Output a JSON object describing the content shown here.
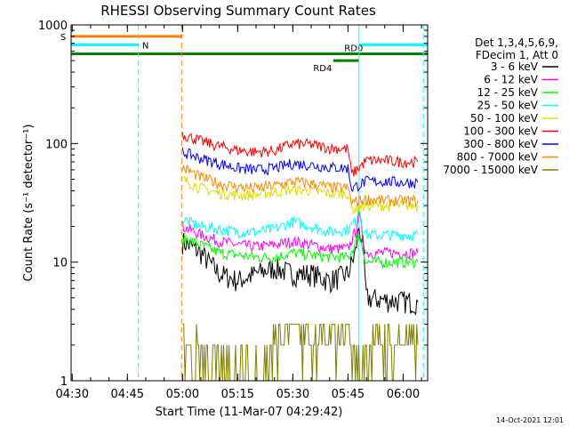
{
  "chart_data": {
    "type": "line",
    "title": "RHESSI Observing Summary Count Rates",
    "xlabel": "Start Time (11-Mar-07 04:29:42)",
    "ylabel": "Count Rate (s⁻¹ detector⁻¹)",
    "x_ticks": [
      "04:30",
      "04:45",
      "05:00",
      "05:15",
      "05:30",
      "05:45",
      "06:00"
    ],
    "x_range": [
      "04:29:42",
      "06:06:40"
    ],
    "y_scale": "log",
    "ylim": [
      1,
      1000
    ],
    "y_ticks": [
      "1",
      "10",
      "100",
      "1000"
    ],
    "legend_header": [
      "Det 1,3,4,5,6,9,",
      "FDecim 1, Att 0"
    ],
    "legend_position": "right",
    "footer_date": "14-Oct-2021 12:01",
    "series": [
      {
        "name": "3 - 6 keV",
        "color": "#000000",
        "x": [
          "05:00",
          "05:05",
          "05:10",
          "05:15",
          "05:20",
          "05:25",
          "05:30",
          "05:35",
          "05:40",
          "05:45",
          "05:47",
          "05:48",
          "05:49",
          "05:50",
          "05:55",
          "06:00",
          "06:04"
        ],
        "values": [
          15,
          12,
          8,
          7,
          8,
          9,
          8,
          8,
          7,
          8,
          12,
          20,
          14,
          5,
          4.8,
          4.7,
          4.6
        ]
      },
      {
        "name": "6 - 12 keV",
        "color": "#ff00ff",
        "x": [
          "05:00",
          "05:05",
          "05:10",
          "05:15",
          "05:20",
          "05:25",
          "05:30",
          "05:35",
          "05:40",
          "05:45",
          "05:47",
          "05:48",
          "05:49",
          "05:50",
          "05:55",
          "06:00",
          "06:04"
        ],
        "values": [
          20,
          17,
          15,
          14,
          13.5,
          14,
          15,
          14,
          13,
          13,
          18,
          26,
          16,
          12,
          12,
          12,
          12
        ]
      },
      {
        "name": "12 - 25 keV",
        "color": "#00ff00",
        "x": [
          "05:00",
          "05:05",
          "05:10",
          "05:15",
          "05:20",
          "05:25",
          "05:30",
          "05:35",
          "05:40",
          "05:45",
          "05:47",
          "05:48",
          "05:49",
          "05:50",
          "05:55",
          "06:00",
          "06:04"
        ],
        "values": [
          16,
          14,
          12,
          11.5,
          11,
          11,
          12,
          11.5,
          11,
          11,
          14,
          18,
          13,
          10,
          10,
          10,
          10
        ]
      },
      {
        "name": "25 - 50 keV",
        "color": "#00ffff",
        "x": [
          "05:00",
          "05:05",
          "05:10",
          "05:15",
          "05:20",
          "05:25",
          "05:30",
          "05:35",
          "05:40",
          "05:45",
          "05:47",
          "05:48",
          "05:49",
          "05:50",
          "05:55",
          "06:00",
          "06:04"
        ],
        "values": [
          23,
          20,
          19,
          18,
          18,
          19,
          22,
          20,
          18,
          19,
          22,
          30,
          20,
          17,
          17,
          17,
          17
        ]
      },
      {
        "name": "50 - 100 keV",
        "color": "#dddd00",
        "x": [
          "05:00",
          "05:05",
          "05:10",
          "05:15",
          "05:20",
          "05:25",
          "05:30",
          "05:35",
          "05:40",
          "05:45",
          "05:46",
          "05:50",
          "05:55",
          "06:00",
          "06:04"
        ],
        "values": [
          50,
          42,
          38,
          37,
          37,
          39,
          41,
          40,
          38,
          38,
          28,
          30,
          30,
          30,
          30
        ]
      },
      {
        "name": "100 - 300 keV",
        "color": "#ff0000",
        "x": [
          "05:00",
          "05:05",
          "05:10",
          "05:15",
          "05:20",
          "05:25",
          "05:30",
          "05:35",
          "05:40",
          "05:45",
          "05:46",
          "05:50",
          "05:55",
          "06:00",
          "06:04"
        ],
        "values": [
          120,
          105,
          95,
          88,
          85,
          87,
          100,
          98,
          92,
          90,
          55,
          72,
          72,
          70,
          70
        ]
      },
      {
        "name": "300 - 800 keV",
        "color": "#0000ff",
        "x": [
          "05:00",
          "05:05",
          "05:10",
          "05:15",
          "05:20",
          "05:25",
          "05:30",
          "05:35",
          "05:40",
          "05:45",
          "05:46",
          "05:50",
          "05:55",
          "06:00",
          "06:04"
        ],
        "values": [
          85,
          75,
          68,
          62,
          60,
          62,
          68,
          66,
          63,
          62,
          42,
          48,
          48,
          47,
          47
        ]
      },
      {
        "name": "800 - 7000 keV",
        "color": "#ff8800",
        "x": [
          "05:00",
          "05:05",
          "05:10",
          "05:15",
          "05:20",
          "05:25",
          "05:30",
          "05:35",
          "05:40",
          "05:45",
          "05:46",
          "05:50",
          "05:55",
          "06:00",
          "06:04"
        ],
        "values": [
          63,
          52,
          46,
          43,
          42,
          44,
          48,
          46,
          43,
          42,
          32,
          34,
          33,
          33,
          33
        ]
      },
      {
        "name": "7000 - 15000 keV",
        "color": "#808000",
        "x": [
          "05:00",
          "05:01",
          "05:02",
          "05:05",
          "05:10",
          "05:15",
          "05:20",
          "05:25",
          "05:30",
          "05:35",
          "05:40",
          "05:45",
          "05:47",
          "05:50",
          "05:55",
          "06:00",
          "06:04"
        ],
        "values": [
          3,
          2,
          1.5,
          2,
          1,
          1,
          1,
          2,
          3,
          2,
          2,
          3,
          1,
          2,
          2,
          2,
          2
        ]
      }
    ],
    "flags": [
      {
        "label": "S",
        "color": "#ff8000",
        "level": 800,
        "start": "04:29:42",
        "end": "05:00"
      },
      {
        "label": "N",
        "color": "#00ffff",
        "level": 680,
        "start": "04:29:42",
        "end": "04:48"
      },
      {
        "label": "",
        "color": "#00ffff",
        "level": 680,
        "start": "05:48",
        "end": "06:06:40"
      },
      {
        "label": "",
        "color": "#008000",
        "level": 570,
        "start": "04:29:42",
        "end": "06:06:40"
      },
      {
        "label": "RD0",
        "color": "#008000",
        "level": 570,
        "start": "05:48",
        "end": "05:48"
      },
      {
        "label": "RD4",
        "color": "#008000",
        "level": 500,
        "start": "05:41",
        "end": "05:48"
      }
    ],
    "vlines": [
      {
        "time": "04:48",
        "color": "#00ffff",
        "dash": true
      },
      {
        "time": "04:59:45",
        "color": "#ff8000",
        "dash": true
      },
      {
        "time": "05:48",
        "color": "#00ffff",
        "dash": false
      },
      {
        "time": "06:05:30",
        "color": "#00ffff",
        "dash": true
      }
    ]
  }
}
